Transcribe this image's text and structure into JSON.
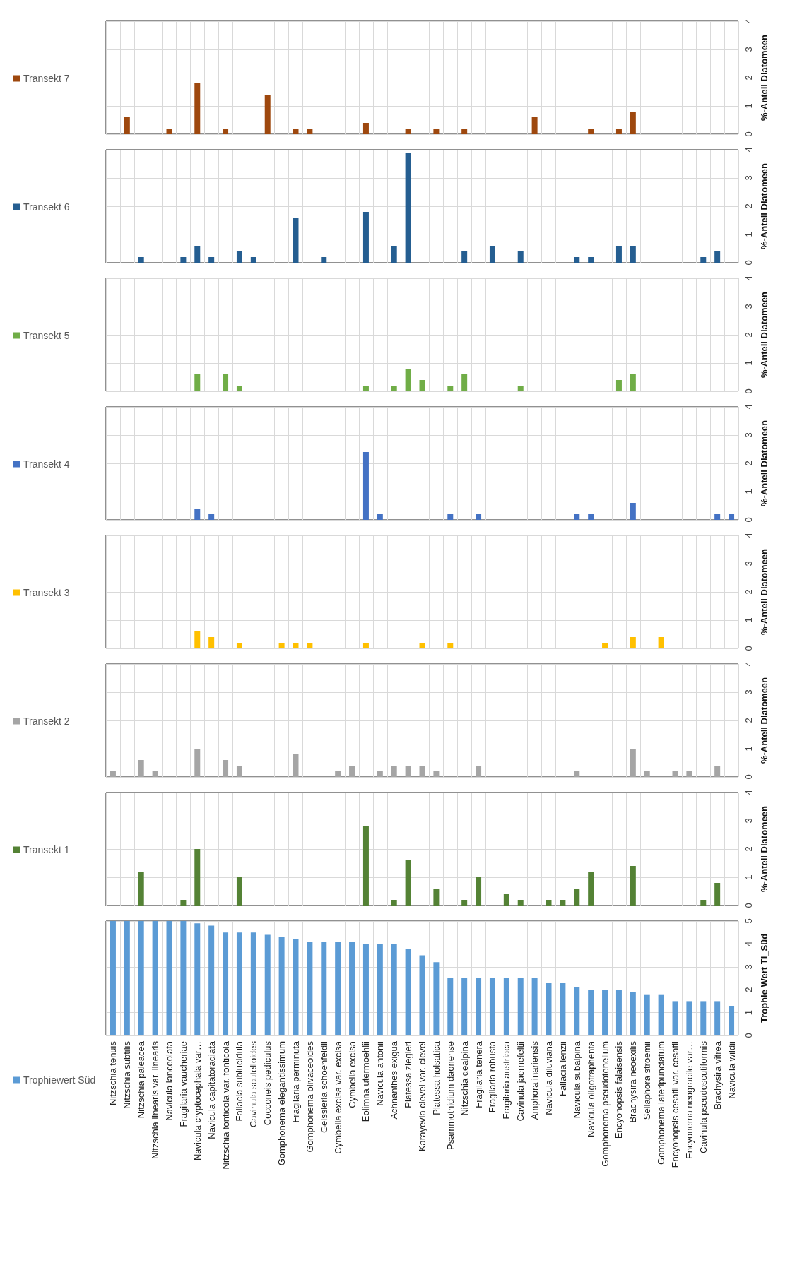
{
  "chart_data": [
    {
      "type": "bar",
      "categories": [
        null,
        null,
        null,
        null,
        null,
        null,
        null,
        null,
        null,
        null,
        null,
        null,
        null,
        null,
        null,
        null,
        null,
        null,
        null,
        null,
        null,
        null,
        null,
        null,
        null,
        null,
        null,
        null,
        null,
        null,
        null,
        null,
        null,
        null,
        null,
        null,
        null,
        null,
        null,
        null,
        null,
        null,
        null,
        null,
        null
      ],
      "series": [
        {
          "name": "Transekt 7",
          "color": "#9e480e",
          "values": [
            null,
            0.6,
            null,
            null,
            0.2,
            null,
            1.8,
            null,
            0.2,
            null,
            null,
            1.4,
            null,
            0.2,
            0.2,
            null,
            null,
            null,
            0.4,
            null,
            null,
            0.2,
            null,
            0.2,
            null,
            0.2,
            null,
            null,
            null,
            null,
            0.6,
            null,
            null,
            null,
            0.2,
            null,
            0.2,
            0.8,
            null,
            null,
            null,
            null,
            null,
            null,
            null
          ]
        }
      ],
      "ylabel": "%-Anteil Diatomeen",
      "ylim": [
        0,
        4
      ],
      "yticks": [
        0,
        1,
        2,
        3,
        4
      ],
      "grid": true,
      "legend": "left",
      "tick_labels": "y"
    },
    {
      "type": "bar",
      "categories": [
        null,
        null,
        null,
        null,
        null,
        null,
        null,
        null,
        null,
        null,
        null,
        null,
        null,
        null,
        null,
        null,
        null,
        null,
        null,
        null,
        null,
        null,
        null,
        null,
        null,
        null,
        null,
        null,
        null,
        null,
        null,
        null,
        null,
        null,
        null,
        null,
        null,
        null,
        null,
        null,
        null,
        null,
        null,
        null,
        null
      ],
      "series": [
        {
          "name": "Transekt 6",
          "color": "#255e91",
          "values": [
            null,
            null,
            0.2,
            null,
            null,
            0.2,
            0.6,
            0.2,
            null,
            0.4,
            0.2,
            null,
            null,
            1.6,
            null,
            0.2,
            null,
            null,
            1.8,
            null,
            0.6,
            3.9,
            null,
            null,
            null,
            0.4,
            null,
            0.6,
            null,
            0.4,
            null,
            null,
            null,
            0.2,
            0.2,
            null,
            0.6,
            0.6,
            null,
            null,
            null,
            null,
            0.2,
            0.4,
            null
          ]
        }
      ],
      "ylabel": "%-Anteil Diatomeen",
      "ylim": [
        0,
        4
      ],
      "yticks": [
        0,
        1,
        2,
        3,
        4
      ],
      "grid": true,
      "legend": "left",
      "tick_labels": "y"
    },
    {
      "type": "bar",
      "categories": [
        null,
        null,
        null,
        null,
        null,
        null,
        null,
        null,
        null,
        null,
        null,
        null,
        null,
        null,
        null,
        null,
        null,
        null,
        null,
        null,
        null,
        null,
        null,
        null,
        null,
        null,
        null,
        null,
        null,
        null,
        null,
        null,
        null,
        null,
        null,
        null,
        null,
        null,
        null,
        null,
        null,
        null,
        null,
        null,
        null
      ],
      "series": [
        {
          "name": "Transekt 5",
          "color": "#70ad47",
          "values": [
            null,
            null,
            null,
            null,
            null,
            null,
            0.6,
            null,
            0.6,
            0.2,
            null,
            null,
            null,
            null,
            null,
            null,
            null,
            null,
            0.2,
            null,
            0.2,
            0.8,
            0.4,
            null,
            0.2,
            0.6,
            null,
            null,
            null,
            0.2,
            null,
            null,
            null,
            null,
            null,
            null,
            0.4,
            0.6,
            null,
            null,
            null,
            null,
            null,
            null,
            null
          ]
        }
      ],
      "ylabel": "%-Anteil Diatomeen",
      "ylim": [
        0,
        4
      ],
      "yticks": [
        0,
        1,
        2,
        3,
        4
      ],
      "grid": true,
      "legend": "left",
      "tick_labels": "y"
    },
    {
      "type": "bar",
      "categories": [
        null,
        null,
        null,
        null,
        null,
        null,
        null,
        null,
        null,
        null,
        null,
        null,
        null,
        null,
        null,
        null,
        null,
        null,
        null,
        null,
        null,
        null,
        null,
        null,
        null,
        null,
        null,
        null,
        null,
        null,
        null,
        null,
        null,
        null,
        null,
        null,
        null,
        null,
        null,
        null,
        null,
        null,
        null,
        null,
        null
      ],
      "series": [
        {
          "name": "Transekt 4",
          "color": "#4472c4",
          "values": [
            null,
            null,
            null,
            null,
            null,
            null,
            0.4,
            0.2,
            null,
            null,
            null,
            null,
            null,
            null,
            null,
            null,
            null,
            null,
            2.4,
            0.2,
            null,
            null,
            null,
            null,
            0.2,
            null,
            0.2,
            null,
            null,
            null,
            null,
            null,
            null,
            0.2,
            0.2,
            null,
            null,
            0.6,
            null,
            null,
            null,
            null,
            null,
            0.2,
            0.2
          ]
        }
      ],
      "ylabel": "%-Anteil Diatomeen",
      "ylim": [
        0,
        4
      ],
      "yticks": [
        0,
        1,
        2,
        3,
        4
      ],
      "grid": true,
      "legend": "left",
      "tick_labels": "y"
    },
    {
      "type": "bar",
      "categories": [
        null,
        null,
        null,
        null,
        null,
        null,
        null,
        null,
        null,
        null,
        null,
        null,
        null,
        null,
        null,
        null,
        null,
        null,
        null,
        null,
        null,
        null,
        null,
        null,
        null,
        null,
        null,
        null,
        null,
        null,
        null,
        null,
        null,
        null,
        null,
        null,
        null,
        null,
        null,
        null,
        null,
        null,
        null,
        null,
        null
      ],
      "series": [
        {
          "name": "Transekt 3",
          "color": "#ffc000",
          "values": [
            null,
            null,
            null,
            null,
            null,
            null,
            0.6,
            0.4,
            null,
            0.2,
            null,
            null,
            0.2,
            0.2,
            0.2,
            null,
            null,
            null,
            0.2,
            null,
            null,
            null,
            0.2,
            null,
            0.2,
            null,
            null,
            null,
            null,
            null,
            null,
            null,
            null,
            null,
            null,
            0.2,
            null,
            0.4,
            null,
            0.4,
            null,
            null,
            null,
            null,
            null
          ]
        }
      ],
      "ylabel": "%-Anteil Diatomeen",
      "ylim": [
        0,
        4
      ],
      "yticks": [
        0,
        1,
        2,
        3,
        4
      ],
      "grid": true,
      "legend": "left",
      "tick_labels": "y"
    },
    {
      "type": "bar",
      "categories": [
        null,
        null,
        null,
        null,
        null,
        null,
        null,
        null,
        null,
        null,
        null,
        null,
        null,
        null,
        null,
        null,
        null,
        null,
        null,
        null,
        null,
        null,
        null,
        null,
        null,
        null,
        null,
        null,
        null,
        null,
        null,
        null,
        null,
        null,
        null,
        null,
        null,
        null,
        null,
        null,
        null,
        null,
        null,
        null,
        null
      ],
      "series": [
        {
          "name": "Transekt 2",
          "color": "#a5a5a5",
          "values": [
            0.2,
            null,
            0.6,
            0.2,
            null,
            null,
            1.0,
            null,
            0.6,
            0.4,
            null,
            null,
            null,
            0.8,
            null,
            null,
            0.2,
            0.4,
            null,
            0.2,
            0.4,
            0.4,
            0.4,
            0.2,
            null,
            null,
            0.4,
            null,
            null,
            null,
            null,
            null,
            null,
            0.2,
            null,
            null,
            null,
            1.0,
            0.2,
            null,
            0.2,
            0.2,
            null,
            0.4,
            null
          ]
        }
      ],
      "ylabel": "%-Anteil Diatomeen",
      "ylim": [
        0,
        4
      ],
      "yticks": [
        0,
        1,
        2,
        3,
        4
      ],
      "grid": true,
      "legend": "left",
      "tick_labels": "y"
    },
    {
      "type": "bar",
      "categories": [
        null,
        null,
        null,
        null,
        null,
        null,
        null,
        null,
        null,
        null,
        null,
        null,
        null,
        null,
        null,
        null,
        null,
        null,
        null,
        null,
        null,
        null,
        null,
        null,
        null,
        null,
        null,
        null,
        null,
        null,
        null,
        null,
        null,
        null,
        null,
        null,
        null,
        null,
        null,
        null,
        null,
        null,
        null,
        null,
        null
      ],
      "series": [
        {
          "name": "Transekt 1",
          "color": "#548235",
          "values": [
            null,
            null,
            1.2,
            null,
            null,
            0.2,
            2.0,
            null,
            null,
            1.0,
            null,
            null,
            null,
            null,
            null,
            null,
            null,
            null,
            2.8,
            null,
            0.2,
            1.6,
            null,
            0.6,
            null,
            0.2,
            1.0,
            null,
            0.4,
            0.2,
            null,
            0.2,
            0.2,
            0.6,
            1.2,
            null,
            null,
            1.4,
            null,
            null,
            null,
            null,
            0.2,
            0.8,
            null
          ]
        }
      ],
      "ylabel": "%-Anteil Diatomeen",
      "ylim": [
        0,
        4
      ],
      "yticks": [
        0,
        1,
        2,
        3,
        4
      ],
      "grid": true,
      "legend": "left",
      "tick_labels": "y"
    },
    {
      "type": "bar",
      "categories": [
        "Nitzschia tenuis",
        "Nitzschia subtilis",
        "Nitzschia paleacea",
        "Nitzschia linearis var. linearis",
        "Navicula lanceolata",
        "Fragilaria vaucheriae",
        "Navicula cryptocephala var…",
        "Navicula capitatoradiata",
        "Nitzschia fonticola var. fonticola",
        "Fallacia sublucidula",
        "Cavinula scutelloides",
        "Cocconeis pediculus",
        "Gomphonema elegantissimum",
        "Fragilaria perminuta",
        "Gomphonema olivaceoides",
        "Geissleria schoenfeldii",
        "Cymbella excisa var. excisa",
        "Cymbella excisa",
        "Eolimna utermoehlii",
        "Navicula antonii",
        "Achnanthes exigua",
        "Platessa ziegleri",
        "Karayevia clevei var. clevei",
        "Platessa holsatica",
        "Psammothidium daonense",
        "Nitzschia dealpina",
        "Fragilaria tenera",
        "Fragilaria robusta",
        "Fragilaria austriaca",
        "Cavinula jaernefeltii",
        "Amphora inariensis",
        "Navicula diluviana",
        "Fallacia lenzii",
        "Navicula subalpina",
        "Navicula oligotraphenta",
        "Gomphonema pseudotenellum",
        "Encyonopsis falaisensis",
        "Brachysira neoexilis",
        "Sellaphora stroemii",
        "Gomphonema lateripunctatum",
        "Encyonopsis cesatii var. cesatii",
        "Encyonema neogracile var…",
        "Cavinula pseudoscutiformis",
        "Brachysira vitrea",
        "Navicula wildii"
      ],
      "series": [
        {
          "name": "Trophiewert Süd",
          "color": "#5b9bd5",
          "values": [
            5,
            5,
            5,
            5,
            5,
            5,
            4.9,
            4.8,
            4.5,
            4.5,
            4.5,
            4.4,
            4.3,
            4.2,
            4.1,
            4.1,
            4.1,
            4.1,
            4.0,
            4.0,
            4.0,
            3.8,
            3.5,
            3.2,
            2.5,
            2.5,
            2.5,
            2.5,
            2.5,
            2.5,
            2.5,
            2.3,
            2.3,
            2.1,
            2.0,
            2.0,
            2.0,
            1.9,
            1.8,
            1.8,
            1.5,
            1.5,
            1.5,
            1.5,
            1.3
          ]
        }
      ],
      "ylabel": "Trophie Wert TI_Süd",
      "ylim": [
        0,
        5
      ],
      "yticks": [
        0,
        1,
        2,
        3,
        4,
        5
      ],
      "grid": true,
      "legend": "left"
    }
  ]
}
